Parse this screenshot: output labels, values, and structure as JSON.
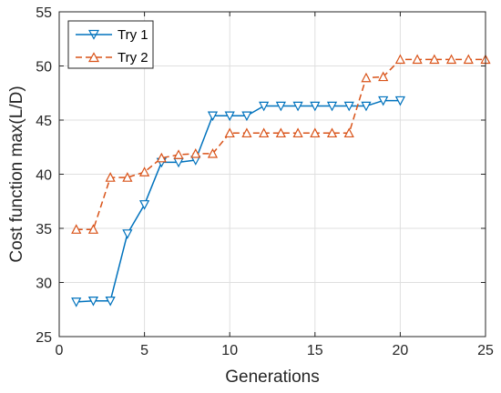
{
  "chart_data": {
    "type": "line",
    "title": "",
    "xlabel": "Generations",
    "ylabel": "Cost function max(L/D)",
    "xlim": [
      0,
      25
    ],
    "ylim": [
      25,
      55
    ],
    "xticks": [
      0,
      5,
      10,
      15,
      20,
      25
    ],
    "yticks": [
      25,
      30,
      35,
      40,
      45,
      50,
      55
    ],
    "grid": true,
    "legend_position": "top-left",
    "series": [
      {
        "name": "Try 1",
        "color": "#0072BD",
        "line_style": "solid",
        "marker": "triangle-down",
        "x": [
          1,
          2,
          3,
          4,
          5,
          6,
          7,
          8,
          9,
          10,
          11,
          12,
          13,
          14,
          15,
          16,
          17,
          18,
          19,
          20
        ],
        "y": [
          28.2,
          28.3,
          28.3,
          34.5,
          37.2,
          41.1,
          41.1,
          41.3,
          45.4,
          45.4,
          45.4,
          46.3,
          46.3,
          46.3,
          46.3,
          46.3,
          46.3,
          46.3,
          46.8,
          46.8
        ]
      },
      {
        "name": "Try 2",
        "color": "#D95319",
        "line_style": "dashed",
        "marker": "triangle-up",
        "x": [
          1,
          2,
          3,
          4,
          5,
          6,
          7,
          8,
          9,
          10,
          11,
          12,
          13,
          14,
          15,
          16,
          17,
          18,
          19,
          20,
          21,
          22,
          23,
          24,
          25
        ],
        "y": [
          34.9,
          34.9,
          39.7,
          39.7,
          40.2,
          41.5,
          41.8,
          41.9,
          41.9,
          43.8,
          43.8,
          43.8,
          43.8,
          43.8,
          43.8,
          43.8,
          43.8,
          48.9,
          49.0,
          50.6,
          50.6,
          50.6,
          50.6,
          50.6,
          50.6
        ]
      }
    ]
  }
}
